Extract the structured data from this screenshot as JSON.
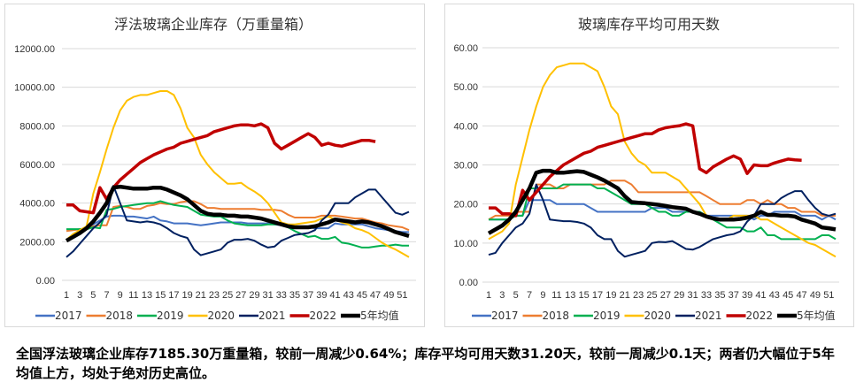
{
  "caption": "全国浮法玻璃企业库存7185.30万重量箱，较前一周减少0.64%；库存平均可用天数31.20天，较前一周减少0.1天；两者仍大幅位于5年均值上方，均处于绝对历史高位。",
  "chart_data": [
    {
      "type": "line",
      "title": "浮法玻璃企业库存（万重量箱）",
      "ylim": [
        0,
        12000
      ],
      "yticks": [
        "0.00",
        "2000.00",
        "4000.00",
        "6000.00",
        "8000.00",
        "10000.00",
        "12000.00"
      ],
      "xticks": [
        "1",
        "3",
        "5",
        "7",
        "9",
        "11",
        "13",
        "15",
        "17",
        "19",
        "21",
        "23",
        "25",
        "27",
        "29",
        "31",
        "33",
        "35",
        "37",
        "39",
        "41",
        "43",
        "45",
        "47",
        "49",
        "51"
      ],
      "grid": true,
      "legend": "bottom",
      "series": [
        {
          "name": "2017",
          "color": "#4472C4",
          "values": [
            2100,
            2300,
            2500,
            2700,
            2900,
            3100,
            3300,
            3350,
            3350,
            3300,
            3300,
            3250,
            3200,
            3300,
            3100,
            3050,
            2950,
            2950,
            2950,
            2900,
            2850,
            2900,
            2950,
            3000,
            3000,
            3000,
            3000,
            2950,
            2950,
            2950,
            2950,
            2900,
            2850,
            2800,
            2750,
            2750,
            2750,
            2700,
            2700,
            2700,
            2950,
            2900,
            2900,
            2900,
            2900,
            2800,
            2700,
            2650,
            2600,
            2550,
            2500,
            2500
          ]
        },
        {
          "name": "2018",
          "color": "#ED7D31",
          "values": [
            2550,
            2600,
            2650,
            2700,
            2800,
            2850,
            2850,
            3800,
            3850,
            3800,
            3700,
            3700,
            3850,
            3900,
            4000,
            3950,
            3950,
            4050,
            4100,
            4100,
            3950,
            3750,
            3750,
            3700,
            3700,
            3700,
            3700,
            3700,
            3700,
            3650,
            3650,
            3650,
            3600,
            3400,
            3250,
            3250,
            3250,
            3250,
            3350,
            3350,
            3350,
            3300,
            3250,
            3200,
            3200,
            3100,
            3000,
            2950,
            2850,
            2800,
            2750,
            2600
          ]
        },
        {
          "name": "2019",
          "color": "#00B050",
          "values": [
            2650,
            2650,
            2650,
            2650,
            2750,
            2700,
            3650,
            3700,
            3800,
            3850,
            3900,
            3950,
            4000,
            4000,
            4100,
            4000,
            3900,
            3850,
            3800,
            3600,
            3400,
            3350,
            3300,
            3300,
            3100,
            2950,
            2900,
            2850,
            2850,
            2850,
            2900,
            2900,
            2900,
            2750,
            2550,
            2400,
            2250,
            2300,
            2150,
            2150,
            2250,
            1950,
            1900,
            1800,
            1700,
            1700,
            1750,
            1800,
            1800,
            1850,
            1800,
            1800
          ]
        },
        {
          "name": "2020",
          "color": "#FFC000",
          "values": [
            2100,
            2400,
            2600,
            2800,
            4500,
            5600,
            6800,
            7900,
            8800,
            9300,
            9500,
            9600,
            9600,
            9700,
            9800,
            9800,
            9600,
            8900,
            7900,
            7400,
            6500,
            6000,
            5600,
            5300,
            5000,
            5000,
            5050,
            4800,
            4600,
            4350,
            4000,
            3500,
            3000,
            2900,
            2900,
            2950,
            3000,
            3050,
            3200,
            3300,
            3150,
            3000,
            2900,
            2700,
            2600,
            2450,
            2200,
            1950,
            1750,
            1600,
            1400,
            1200
          ]
        },
        {
          "name": "2021",
          "color": "#002060",
          "values": [
            1200,
            1500,
            1900,
            2300,
            2700,
            3000,
            3400,
            4900,
            4000,
            3100,
            3050,
            3000,
            3050,
            3000,
            2900,
            2700,
            2450,
            2300,
            2200,
            1600,
            1300,
            1400,
            1500,
            1600,
            1950,
            2100,
            2100,
            2150,
            2050,
            1850,
            1700,
            1750,
            2050,
            2200,
            2350,
            2400,
            2450,
            2600,
            3100,
            3400,
            4000,
            4000,
            4000,
            4300,
            4500,
            4700,
            4700,
            4300,
            3900,
            3500,
            3400,
            3550
          ]
        },
        {
          "name": "2022",
          "color": "#C00000",
          "values": [
            3900,
            3900,
            3600,
            3550,
            3500,
            4800,
            4200,
            4800,
            5200,
            5500,
            5800,
            6100,
            6300,
            6500,
            6650,
            6800,
            6900,
            7100,
            7200,
            7300,
            7400,
            7500,
            7700,
            7800,
            7900,
            8000,
            8050,
            8050,
            8000,
            8100,
            7900,
            7100,
            6800,
            7000,
            7200,
            7400,
            7600,
            7400,
            7000,
            7100,
            7000,
            6950,
            7050,
            7150,
            7250,
            7250,
            7185.3
          ]
        },
        {
          "name": "5年均值",
          "color": "#000000",
          "values": [
            2050,
            2250,
            2450,
            2700,
            3050,
            3500,
            4000,
            4800,
            4850,
            4800,
            4750,
            4750,
            4750,
            4800,
            4800,
            4700,
            4550,
            4400,
            4200,
            3900,
            3600,
            3450,
            3400,
            3400,
            3350,
            3350,
            3300,
            3300,
            3250,
            3200,
            3100,
            3000,
            2900,
            2800,
            2750,
            2750,
            2750,
            2800,
            2900,
            3000,
            3150,
            3100,
            3050,
            3000,
            3050,
            3000,
            2900,
            2800,
            2650,
            2500,
            2400,
            2300
          ]
        }
      ]
    },
    {
      "type": "line",
      "title": "玻璃库存平均可用天数",
      "ylim": [
        0,
        60
      ],
      "yticks": [
        "0.00",
        "10.00",
        "20.00",
        "30.00",
        "40.00",
        "50.00",
        "60.00"
      ],
      "xticks": [
        "1",
        "3",
        "5",
        "7",
        "9",
        "11",
        "13",
        "15",
        "17",
        "19",
        "21",
        "23",
        "25",
        "27",
        "29",
        "31",
        "33",
        "35",
        "37",
        "39",
        "41",
        "43",
        "45",
        "47",
        "49",
        "51"
      ],
      "grid": true,
      "legend": "bottom",
      "series": [
        {
          "name": "2017",
          "color": "#4472C4",
          "values": [
            16,
            16,
            16,
            16,
            17,
            17,
            21,
            21,
            21,
            21,
            20,
            20,
            20,
            20,
            20,
            19,
            18,
            18,
            18,
            18,
            18,
            18,
            18,
            18,
            19,
            19,
            19,
            18,
            18,
            18,
            18,
            18,
            17,
            17,
            17,
            17,
            17,
            17,
            17,
            16,
            17,
            17,
            18,
            18,
            18,
            18,
            17,
            17,
            17,
            16,
            17,
            16
          ]
        },
        {
          "name": "2018",
          "color": "#ED7D31",
          "values": [
            16,
            17,
            17,
            17,
            18,
            18,
            18,
            25,
            25,
            25,
            24,
            24,
            25,
            25,
            25,
            25,
            25,
            25,
            26,
            26,
            26,
            25,
            23,
            23,
            23,
            23,
            23,
            23,
            23,
            23,
            23,
            23,
            22,
            21,
            20,
            20,
            20,
            20,
            21,
            21,
            20,
            21,
            20,
            20,
            19,
            19,
            18,
            18,
            18,
            17,
            17,
            17
          ]
        },
        {
          "name": "2019",
          "color": "#00B050",
          "values": [
            16,
            16,
            16,
            16,
            17,
            17,
            24,
            24,
            24,
            24,
            24,
            25,
            25,
            25,
            25,
            25,
            24,
            24,
            23,
            22,
            21,
            20,
            20,
            20,
            19,
            18,
            18,
            17,
            17,
            18,
            18,
            18,
            17,
            16,
            15,
            14,
            14,
            14,
            13,
            13,
            14,
            12,
            12,
            11,
            11,
            11,
            11,
            11,
            11,
            12,
            12,
            11
          ]
        },
        {
          "name": "2020",
          "color": "#FFC000",
          "values": [
            11,
            12,
            13,
            15,
            25,
            32,
            39,
            45,
            50,
            53,
            55,
            55.5,
            56,
            56,
            56,
            55,
            54,
            50,
            45,
            43,
            36,
            33,
            31,
            30,
            28,
            28,
            28,
            27,
            26,
            24,
            22,
            20,
            17,
            16,
            16,
            16,
            17,
            17,
            17,
            17,
            16,
            16,
            15,
            14,
            13,
            12,
            11,
            10,
            9.5,
            8.5,
            7.5,
            6.5
          ]
        },
        {
          "name": "2021",
          "color": "#002060",
          "values": [
            7,
            7.5,
            10,
            12,
            14,
            15,
            17.5,
            25,
            21,
            16,
            15.8,
            15.6,
            15.6,
            15.4,
            15,
            14,
            12,
            11,
            11,
            8,
            6.5,
            7,
            7.5,
            8,
            10,
            10.3,
            10.2,
            10.5,
            9.5,
            8.5,
            8.3,
            9,
            10,
            11,
            11.5,
            12,
            12.3,
            13,
            15.5,
            17,
            20,
            20,
            20,
            21.5,
            22.5,
            23.3,
            23.3,
            21,
            19,
            17.5,
            17,
            17.5
          ]
        },
        {
          "name": "2022",
          "color": "#C00000",
          "values": [
            19,
            19,
            17.5,
            17.5,
            17,
            23.5,
            21,
            23,
            25,
            27,
            28.5,
            30,
            31,
            32,
            33,
            33.5,
            34.5,
            35,
            35.5,
            36,
            36.5,
            37,
            37.5,
            38,
            38,
            39,
            39.5,
            39.8,
            40,
            40.5,
            40,
            29,
            28,
            29.5,
            30.5,
            31.5,
            32.3,
            31.5,
            27.8,
            30,
            29.8,
            29.8,
            30.5,
            31,
            31.5,
            31.3,
            31.2
          ]
        },
        {
          "name": "5年均值",
          "color": "#000000",
          "values": [
            12.5,
            13.5,
            14.5,
            16,
            18,
            21,
            24,
            28,
            28.5,
            28.5,
            28,
            28,
            28.2,
            28.4,
            28.2,
            27.5,
            26.8,
            26,
            25,
            24,
            22,
            20.5,
            20.3,
            20.2,
            20,
            19.8,
            19.5,
            19.2,
            19,
            18.8,
            18,
            17.5,
            16.8,
            16.3,
            16,
            16,
            16,
            16.2,
            16.5,
            17,
            18,
            17.2,
            17.2,
            17,
            17,
            16.8,
            16,
            15.5,
            15,
            14,
            13.8,
            13.5
          ]
        }
      ]
    }
  ]
}
